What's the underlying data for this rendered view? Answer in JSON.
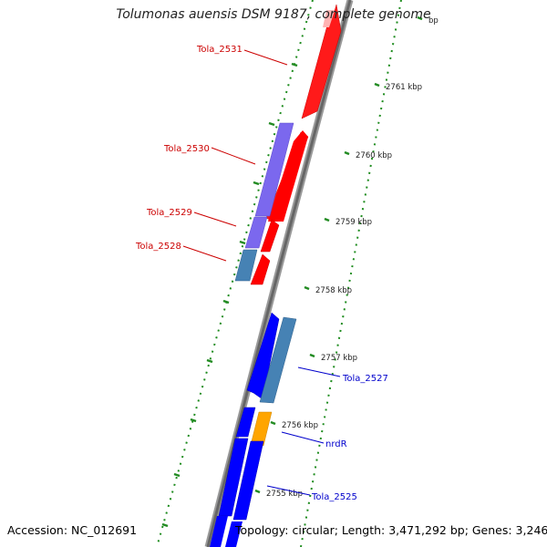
{
  "title": "Tolumonas auensis DSM 9187, complete genome",
  "accession": "Accession: NC_012691",
  "topology": "Topology: circular; Length: 3,471,292 bp; Genes: 3,246",
  "colors": {
    "forward": "#ff0000",
    "reverse": "#0000ff",
    "purple": "#7b68ee",
    "steel": "#4682b4",
    "orange": "#ffa500",
    "tick": "#228b22",
    "backbone": "#7f7f7f",
    "label_fwd": "#cc0000",
    "label_rev": "#0000cc"
  },
  "ticks": [
    {
      "label": "bp"
    },
    {
      "label": "2761 kbp"
    },
    {
      "label": "2760 kbp"
    },
    {
      "label": "2759 kbp"
    },
    {
      "label": "2758 kbp"
    },
    {
      "label": "2757 kbp"
    },
    {
      "label": "2756 kbp"
    },
    {
      "label": "2755 kbp"
    }
  ],
  "gene_labels": [
    {
      "text": "Tola_2531",
      "strand": "forward"
    },
    {
      "text": "Tola_2530",
      "strand": "forward"
    },
    {
      "text": "Tola_2529",
      "strand": "forward"
    },
    {
      "text": "Tola_2528",
      "strand": "forward"
    },
    {
      "text": "Tola_2527",
      "strand": "reverse"
    },
    {
      "text": "nrdR",
      "strand": "reverse"
    },
    {
      "text": "Tola_2525",
      "strand": "reverse"
    }
  ]
}
